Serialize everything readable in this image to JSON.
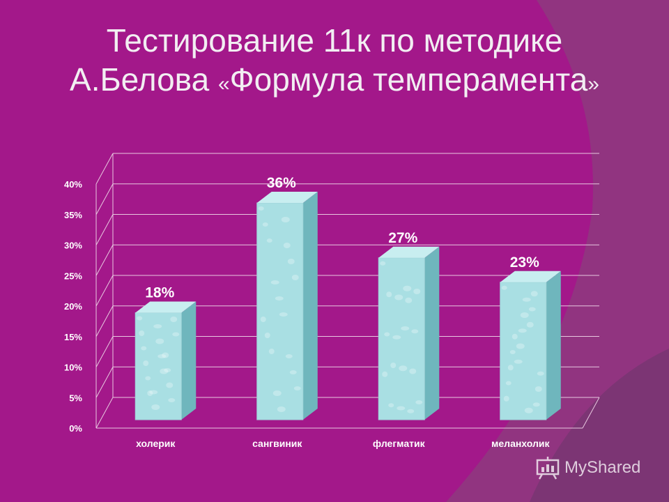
{
  "slide": {
    "title_line1": "Тестирование 11к по методике",
    "title_line2_a": "А.Белова ",
    "title_line2_b": "Формула темперамента",
    "quote_open": "«",
    "quote_close": "»"
  },
  "colors": {
    "background": "#a3188a",
    "decor": "#8e3a7e",
    "bar_front": "#a9dfe3",
    "bar_side": "#6fb6bd",
    "bar_top": "#c8eef0",
    "gridline": "#e8c8e0"
  },
  "watermark": {
    "text": "MyShared",
    "icon": "presentation-board-icon"
  },
  "chart_data": {
    "type": "bar",
    "title": "",
    "xlabel": "",
    "ylabel": "",
    "categories": [
      "холерик",
      "сангвиник",
      "флегматик",
      "меланхолик"
    ],
    "values": [
      18,
      36,
      27,
      23
    ],
    "value_labels": [
      "18%",
      "36%",
      "27%",
      "23%"
    ],
    "ylim": [
      0,
      40
    ],
    "yticks": [
      "0%",
      "5%",
      "10%",
      "15%",
      "20%",
      "25%",
      "30%",
      "35%",
      "40%"
    ],
    "grid": true,
    "legend": "none",
    "style": "3d-column"
  }
}
